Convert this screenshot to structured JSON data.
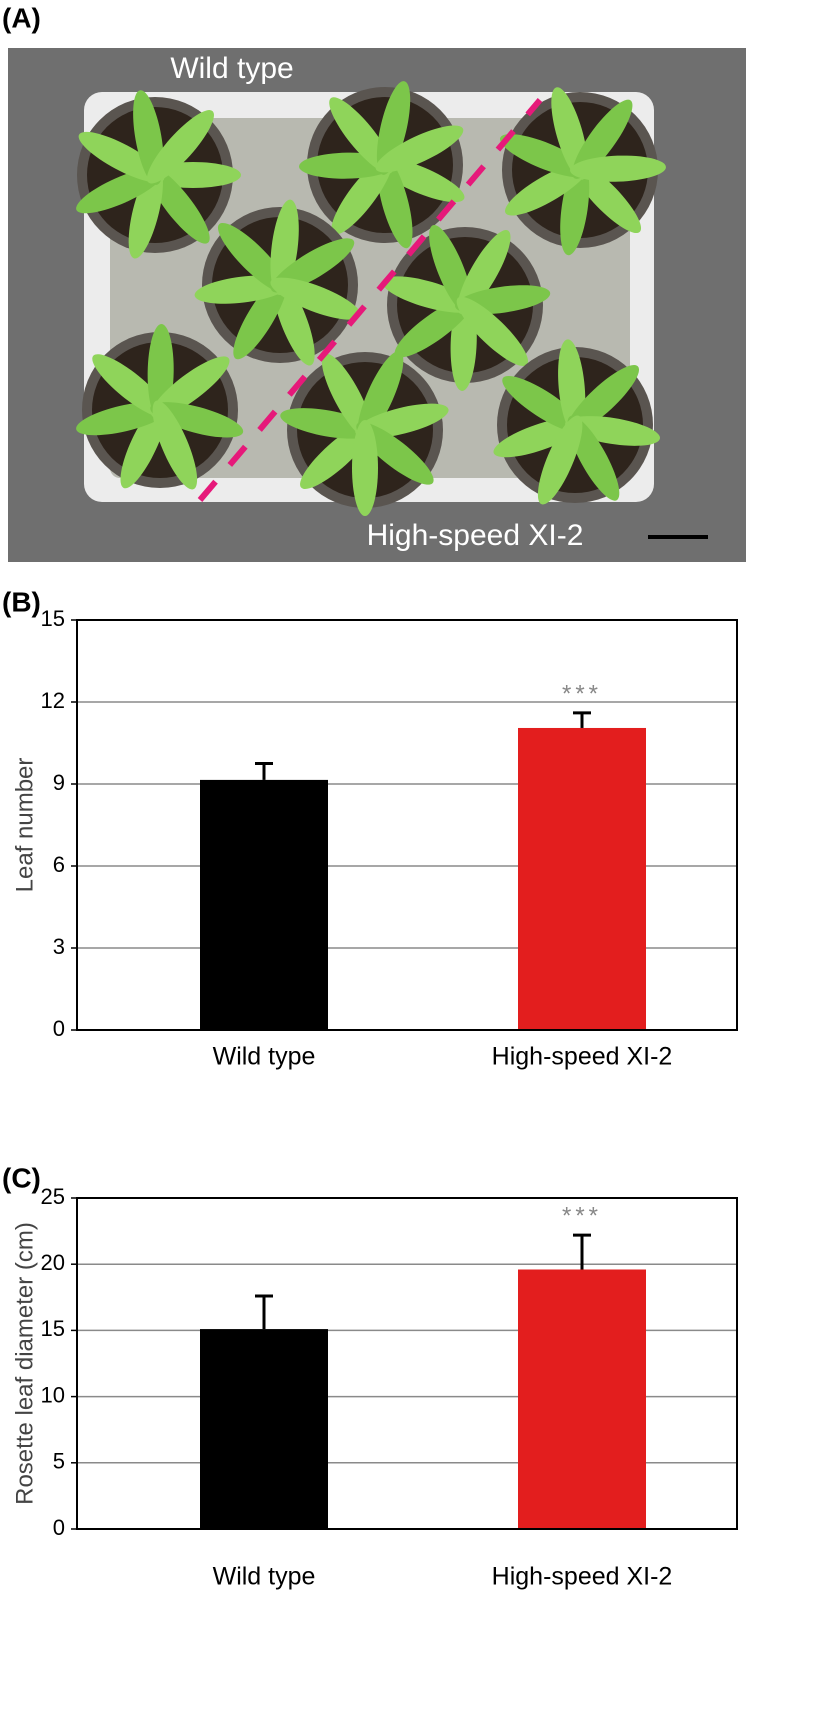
{
  "panel_labels": [
    "(A)",
    "(B)",
    "(C)"
  ],
  "photo": {
    "labels": [
      "Wild type",
      "High-speed XI-2"
    ]
  },
  "chart_data": [
    {
      "type": "bar",
      "ylabel": "Leaf number",
      "categories": [
        "Wild type",
        "High-speed XI-2"
      ],
      "values": [
        9.15,
        11.05
      ],
      "errors": [
        0.6,
        0.55
      ],
      "colors": [
        "#000000",
        "#e31e1e"
      ],
      "significance": [
        null,
        "***"
      ],
      "ylim": [
        0,
        15
      ],
      "yticks": [
        0,
        3,
        6,
        9,
        12,
        15
      ],
      "grid": true
    },
    {
      "type": "bar",
      "ylabel": "Rosette leaf diameter (cm)",
      "categories": [
        "Wild type",
        "High-speed XI-2"
      ],
      "values": [
        15.1,
        19.6
      ],
      "errors": [
        2.5,
        2.6
      ],
      "colors": [
        "#000000",
        "#e31e1e"
      ],
      "significance": [
        null,
        "***"
      ],
      "ylim": [
        0,
        25
      ],
      "yticks": [
        0,
        5,
        10,
        15,
        20,
        25
      ],
      "grid": true
    }
  ]
}
